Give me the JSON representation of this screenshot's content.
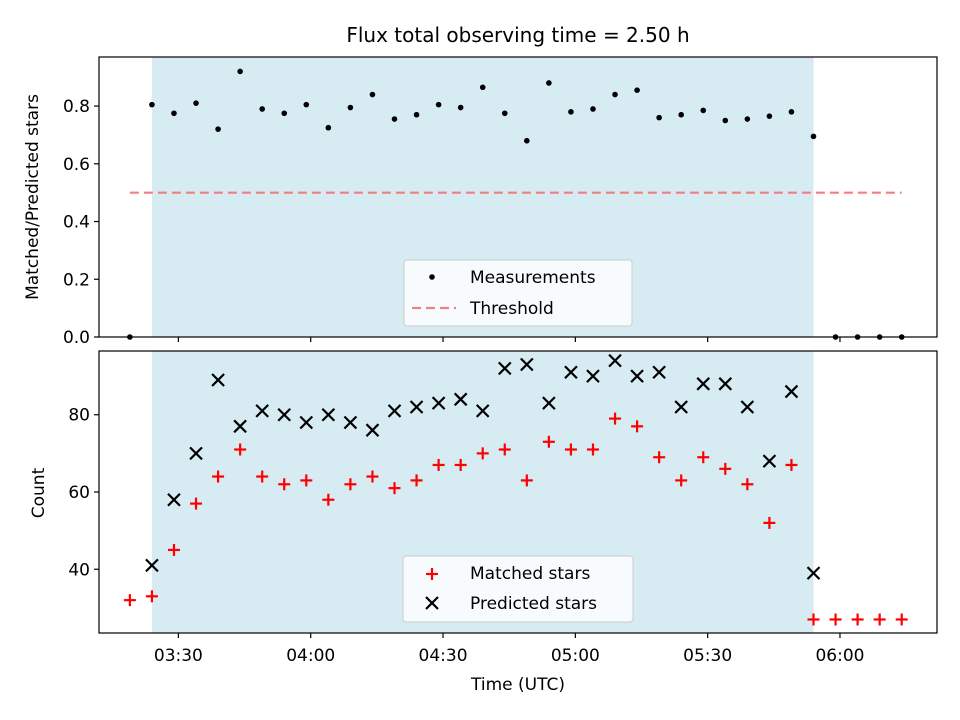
{
  "chart_data": [
    {
      "type": "scatter",
      "title": "Flux total observing time = 2.50 h",
      "xlabel": "",
      "ylabel": "Matched/Predicted stars",
      "ylim": [
        0,
        0.97
      ],
      "xlim": [
        "03:12",
        "06:22"
      ],
      "yticks": [
        "0.0",
        "0.2",
        "0.4",
        "0.6",
        "0.8"
      ],
      "x_tick_labels_visible": false,
      "shaded_region": {
        "start": "03:24",
        "end": "05:54",
        "color": "#add8e6"
      },
      "x": [
        "03:19",
        "03:24",
        "03:29",
        "03:34",
        "03:39",
        "03:44",
        "03:49",
        "03:54",
        "03:59",
        "04:04",
        "04:09",
        "04:14",
        "04:19",
        "04:24",
        "04:29",
        "04:34",
        "04:39",
        "04:44",
        "04:49",
        "04:54",
        "04:59",
        "05:04",
        "05:09",
        "05:14",
        "05:19",
        "05:24",
        "05:29",
        "05:34",
        "05:39",
        "05:44",
        "05:49",
        "05:54",
        "05:59",
        "06:04",
        "06:09",
        "06:14"
      ],
      "series": [
        {
          "name": "Measurements",
          "marker": "dot",
          "color": "#000000",
          "values": [
            0.0,
            0.805,
            0.775,
            0.81,
            0.72,
            0.92,
            0.79,
            0.775,
            0.805,
            0.725,
            0.795,
            0.84,
            0.755,
            0.77,
            0.805,
            0.795,
            0.865,
            0.775,
            0.68,
            0.88,
            0.78,
            0.79,
            0.84,
            0.855,
            0.76,
            0.77,
            0.785,
            0.75,
            0.755,
            0.765,
            0.78,
            0.695,
            0.0,
            0.0,
            0.0,
            0.0
          ]
        },
        {
          "name": "Threshold",
          "style": "dashed-line",
          "color": "#f08080",
          "x_range": [
            "03:19",
            "06:14"
          ],
          "value": 0.5
        }
      ],
      "legend": {
        "placement": "bottom-center",
        "entries": [
          "Measurements",
          "Threshold"
        ]
      },
      "grid": false
    },
    {
      "type": "scatter",
      "title": "",
      "xlabel": "Time (UTC)",
      "ylabel": "Count",
      "ylim": [
        23.5,
        96.5
      ],
      "xlim": [
        "03:12",
        "06:22"
      ],
      "yticks": [
        "40",
        "60",
        "80"
      ],
      "xticks": [
        "03:30",
        "04:00",
        "04:30",
        "05:00",
        "05:30",
        "06:00"
      ],
      "shaded_region": {
        "start": "03:24",
        "end": "05:54",
        "color": "#add8e6"
      },
      "x": [
        "03:19",
        "03:24",
        "03:29",
        "03:34",
        "03:39",
        "03:44",
        "03:49",
        "03:54",
        "03:59",
        "04:04",
        "04:09",
        "04:14",
        "04:19",
        "04:24",
        "04:29",
        "04:34",
        "04:39",
        "04:44",
        "04:49",
        "04:54",
        "04:59",
        "05:04",
        "05:09",
        "05:14",
        "05:19",
        "05:24",
        "05:29",
        "05:34",
        "05:39",
        "05:44",
        "05:49",
        "05:54",
        "05:59",
        "06:04",
        "06:09",
        "06:14"
      ],
      "series": [
        {
          "name": "Matched stars",
          "marker": "plus",
          "color": "#ff0000",
          "values": [
            32,
            33,
            45,
            57,
            64,
            71,
            64,
            62,
            63,
            58,
            62,
            64,
            61,
            63,
            67,
            67,
            70,
            71,
            63,
            73,
            71,
            71,
            79,
            77,
            69,
            63,
            69,
            66,
            62,
            52,
            67,
            27,
            27,
            27,
            27,
            27
          ]
        },
        {
          "name": "Predicted stars",
          "marker": "x",
          "color": "#000000",
          "values": [
            null,
            41,
            58,
            70,
            89,
            77,
            81,
            80,
            78,
            80,
            78,
            76,
            81,
            82,
            83,
            84,
            81,
            92,
            93,
            83,
            91,
            90,
            94,
            90,
            91,
            82,
            88,
            88,
            82,
            68,
            86,
            39,
            null,
            null,
            null,
            null
          ]
        }
      ],
      "legend": {
        "placement": "bottom-center",
        "entries": [
          "Matched stars",
          "Predicted stars"
        ]
      },
      "grid": false
    }
  ]
}
